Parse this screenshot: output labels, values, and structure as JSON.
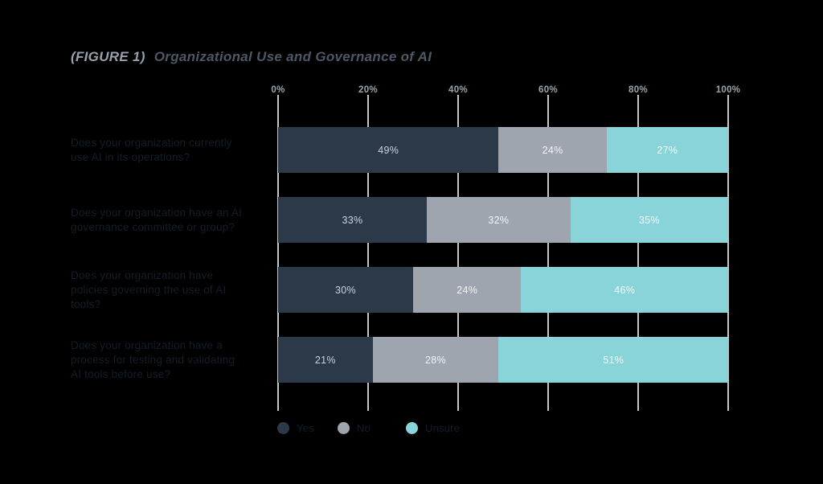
{
  "title": {
    "prefix": "(FIGURE 1)",
    "main": "Organizational Use and Governance of AI"
  },
  "axis": {
    "ticks": [
      "0%",
      "20%",
      "40%",
      "60%",
      "80%",
      "100%"
    ]
  },
  "rows": [
    {
      "label_lines": [
        "Does your organization currently",
        "use AI in its operations?"
      ]
    },
    {
      "label_lines": [
        "Does your organization have an AI",
        "governance committee or group?"
      ]
    },
    {
      "label_lines": [
        "Does your organization have",
        "policies governing the use of AI",
        "tools?"
      ]
    },
    {
      "label_lines": [
        "Does your organization have a",
        "process for testing and validating",
        "AI tools before use?"
      ]
    }
  ],
  "legend": [
    {
      "label": "Yes",
      "color": "#2b3949"
    },
    {
      "label": "No",
      "color": "#9ea5af"
    },
    {
      "label": "Unsure",
      "color": "#89d4d8"
    }
  ],
  "colors": {
    "background": "#000000",
    "gridline": "#c3c7cc",
    "tick_text": "#9ba3ad",
    "title_prefix": "#97a1ab",
    "title_main": "#4c5864",
    "category_text": "#141d29",
    "value_text": "#f3f5f6"
  },
  "chart_data": {
    "type": "bar",
    "orientation": "horizontal-stacked",
    "title": "(FIGURE 1) Organizational Use and Governance of AI",
    "categories": [
      "Does your organization currently use AI in its operations?",
      "Does your organization have an AI governance committee or group?",
      "Does your organization have policies governing the use of AI tools?",
      "Does your organization have a process for testing and validating AI tools before use?"
    ],
    "series": [
      {
        "name": "Yes",
        "color": "#2b3949",
        "values": [
          49,
          33,
          30,
          21
        ]
      },
      {
        "name": "No",
        "color": "#9ea5af",
        "values": [
          24,
          32,
          24,
          28
        ]
      },
      {
        "name": "Unsure",
        "color": "#89d4d8",
        "values": [
          27,
          35,
          46,
          51
        ]
      }
    ],
    "xlim": [
      0,
      100
    ],
    "x_ticks": [
      "0%",
      "20%",
      "40%",
      "60%",
      "80%",
      "100%"
    ],
    "grid": true,
    "legend_position": "bottom",
    "value_labels": "inside segments, shown as percentages"
  }
}
